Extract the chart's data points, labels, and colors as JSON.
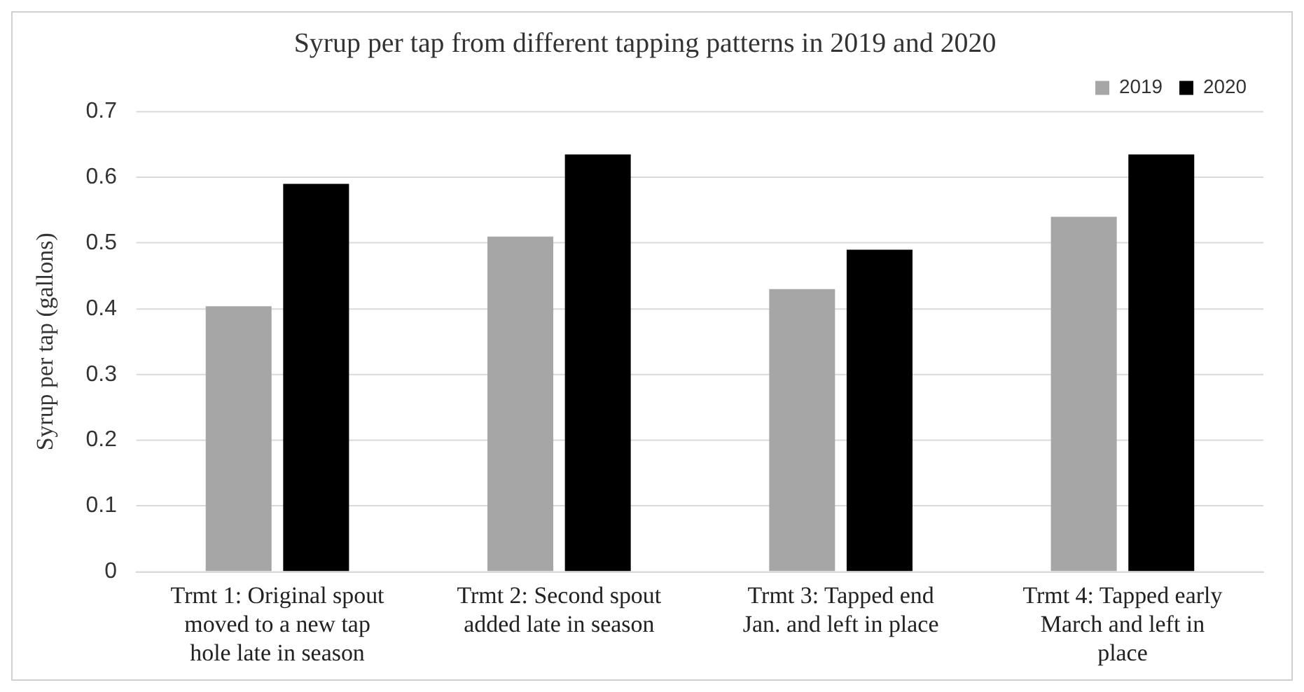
{
  "chart_data": {
    "type": "bar",
    "title": "Syrup per tap from different tapping patterns in 2019 and 2020",
    "ylabel": "Syrup per tap (gallons)",
    "categories": [
      "Trmt 1: Original spout moved to a new tap hole late in season",
      "Trmt 2: Second spout added late in season",
      "Trmt 3: Tapped end Jan. and left in place",
      "Trmt 4: Tapped early March and left in place"
    ],
    "series": [
      {
        "name": "2019",
        "color": "#a6a6a6",
        "values": [
          0.404,
          0.51,
          0.43,
          0.54
        ]
      },
      {
        "name": "2020",
        "color": "#000000",
        "values": [
          0.59,
          0.635,
          0.49,
          0.635
        ]
      }
    ],
    "ylim": [
      0,
      0.7
    ],
    "yticks": [
      0,
      0.1,
      0.2,
      0.3,
      0.4,
      0.5,
      0.6,
      0.7
    ],
    "grid": "y",
    "legend": "top right"
  }
}
